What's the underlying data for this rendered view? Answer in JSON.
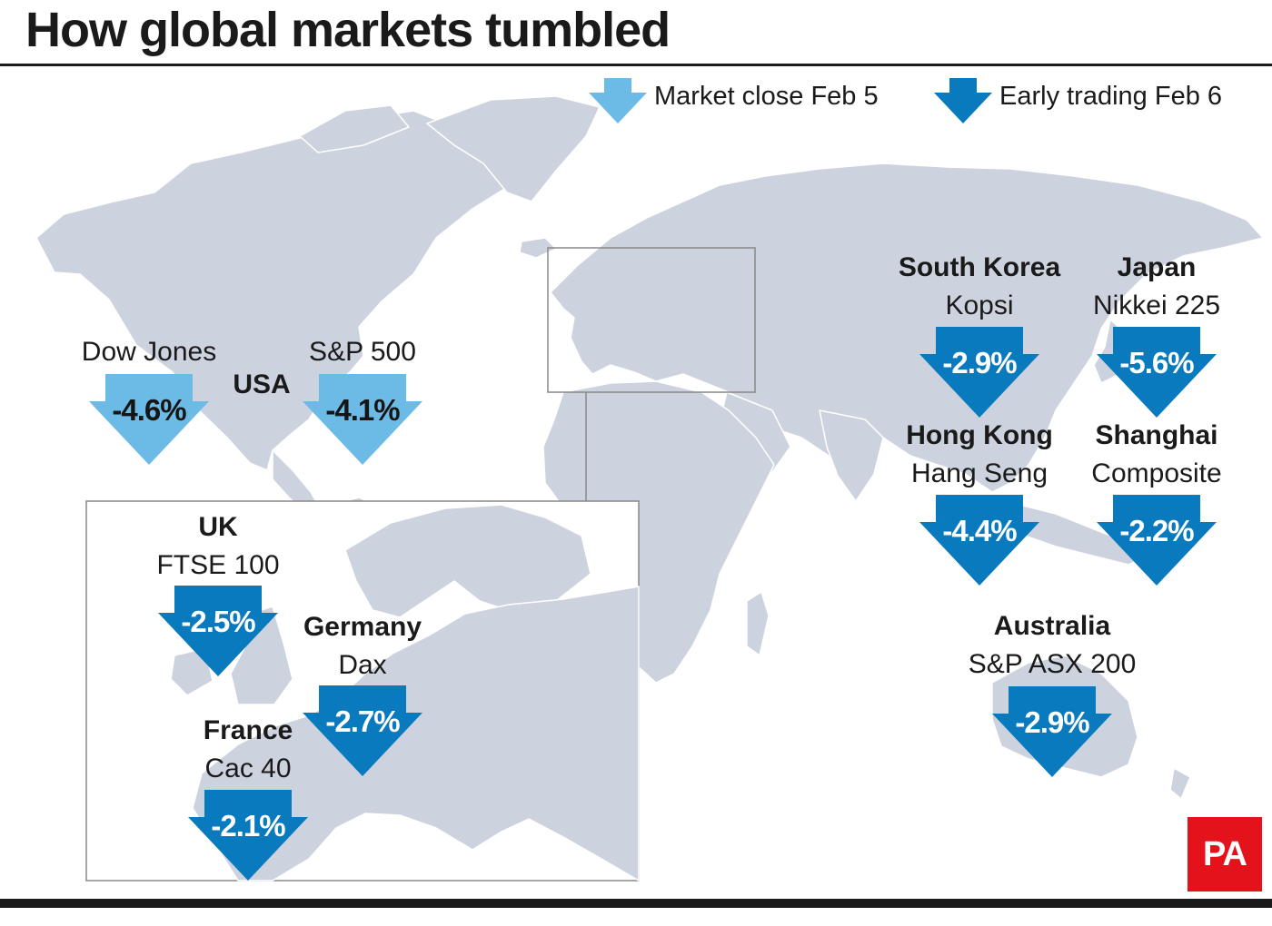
{
  "title": "How global markets tumbled",
  "colors": {
    "market_close": "#6bbbe6",
    "early_trading": "#0a7abe",
    "land": "#ccd3de",
    "brand": "#e3121b"
  },
  "legend": {
    "close_label": "Market close Feb 5",
    "early_label": "Early trading Feb 6"
  },
  "usa": {
    "country": "USA",
    "dow_label": "Dow Jones",
    "dow_value": "-4.6%",
    "sp_label": "S&P 500",
    "sp_value": "-4.1%"
  },
  "uk": {
    "country": "UK",
    "index": "FTSE 100",
    "value": "-2.5%"
  },
  "germany": {
    "country": "Germany",
    "index": "Dax",
    "value": "-2.7%"
  },
  "france": {
    "country": "France",
    "index": "Cac 40",
    "value": "-2.1%"
  },
  "south_korea": {
    "country": "South Korea",
    "index": "Kopsi",
    "value": "-2.9%"
  },
  "japan": {
    "country": "Japan",
    "index": "Nikkei 225",
    "value": "-5.6%"
  },
  "hong_kong": {
    "country": "Hong Kong",
    "index": "Hang Seng",
    "value": "-4.4%"
  },
  "shanghai": {
    "country": "Shanghai",
    "index": "Composite",
    "value": "-2.2%"
  },
  "australia": {
    "country": "Australia",
    "index": "S&P ASX 200",
    "value": "-2.9%"
  },
  "logo": "PA"
}
